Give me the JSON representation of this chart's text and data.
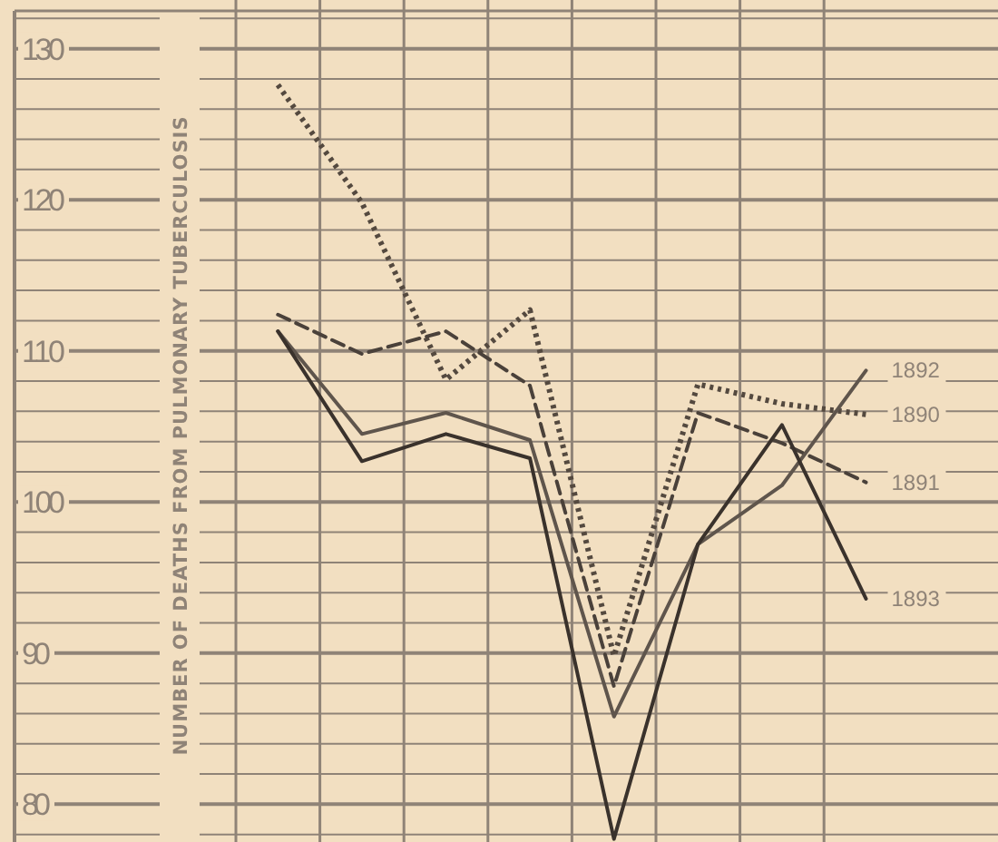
{
  "chart_data": {
    "type": "line",
    "ylabel": "NUMBER OF DEATHS FROM PULMONARY TUBERCULOSIS",
    "categories": [
      null,
      null,
      null,
      null,
      null,
      null,
      null,
      null
    ],
    "ylim": [
      77.5,
      132.5
    ],
    "yticks": [
      80,
      90,
      100,
      110,
      120,
      130
    ],
    "grid": true,
    "tick_labels": "y",
    "series": [
      {
        "name": "1890",
        "color": "#54493f",
        "line_style": "dotted",
        "values": [
          127.6,
          119.8,
          108.1,
          112.7,
          89.8,
          107.8,
          106.5,
          105.8
        ]
      },
      {
        "name": "1891",
        "color": "#4a413a",
        "line_style": "dashed",
        "values": [
          112.4,
          109.8,
          111.3,
          107.7,
          87.8,
          105.9,
          103.9,
          101.3
        ]
      },
      {
        "name": "1892",
        "color": "#5f554c",
        "line_style": "solid",
        "values": [
          111.3,
          104.5,
          105.9,
          104.1,
          85.8,
          97.2,
          101.1,
          108.7
        ]
      },
      {
        "name": "1893",
        "color": "#3a322c",
        "line_style": "solid",
        "values": [
          111.3,
          102.7,
          104.5,
          102.9,
          77.7,
          97.2,
          105.1,
          93.6
        ]
      }
    ]
  }
}
